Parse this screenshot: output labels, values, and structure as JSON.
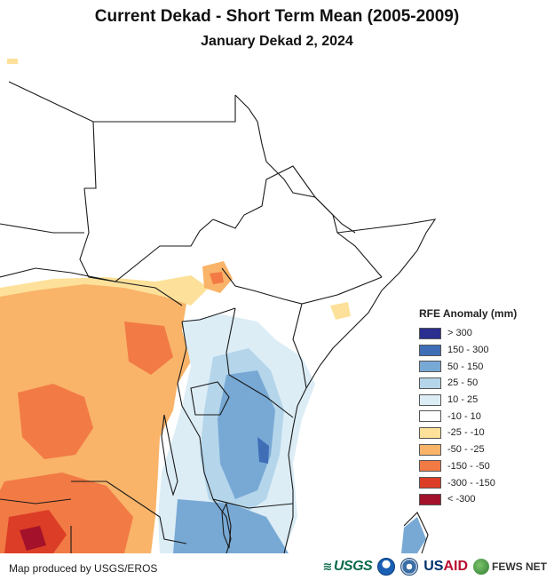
{
  "title": "Current Dekad - Short Term Mean (2005-2009)",
  "subtitle": "January Dekad 2, 2024",
  "legend": {
    "title": "RFE Anomaly (mm)",
    "items": [
      {
        "label": "> 300",
        "color": "#2b2f8f"
      },
      {
        "label": "150 - 300",
        "color": "#3f6eb6"
      },
      {
        "label": "50 - 150",
        "color": "#78a9d5"
      },
      {
        "label": "25 - 50",
        "color": "#b4d5ea"
      },
      {
        "label": "10 - 25",
        "color": "#dcedf6"
      },
      {
        "label": "-10 - 10",
        "color": "#ffffff"
      },
      {
        "label": "-25 - -10",
        "color": "#fde19a"
      },
      {
        "label": "-50 - -25",
        "color": "#f9b469"
      },
      {
        "label": "-150 - -50",
        "color": "#f27a45"
      },
      {
        "label": "-300 - -150",
        "color": "#dc3d26"
      },
      {
        "label": "< -300",
        "color": "#a3112a"
      }
    ]
  },
  "footer": {
    "credit": "Map produced by USGS/EROS",
    "logos": {
      "usgs": "USGS",
      "usaid_us": "US",
      "usaid_aid": "AID",
      "fews": "FEWS NET"
    }
  },
  "colors": {
    "border": "#1a1a1a",
    "background": "#ffffff"
  }
}
